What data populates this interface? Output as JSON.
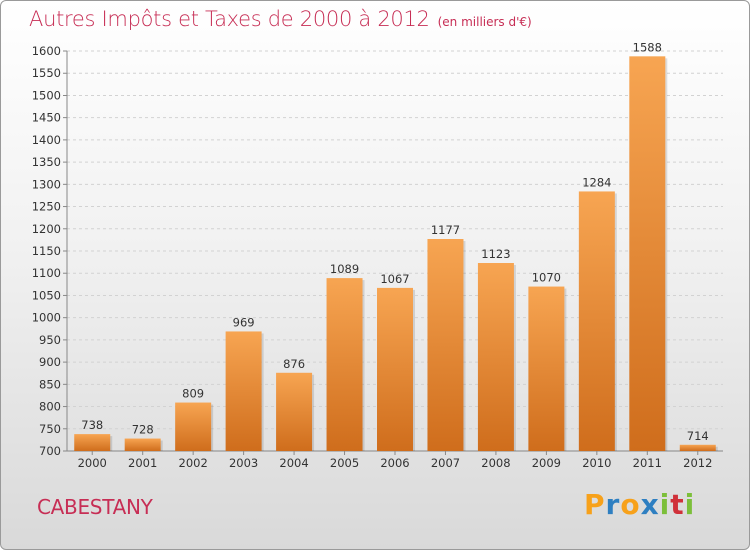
{
  "title": "Autres Impôts et Taxes de 2000 à 2012",
  "unit_note": "(en milliers d'€)",
  "city": "CABESTANY",
  "logo": {
    "letters": [
      "P",
      "r",
      "o",
      "x",
      "i",
      "t",
      "i"
    ],
    "colors": [
      "#f7a11a",
      "#2e7fc1",
      "#f7a11a",
      "#2e7fc1",
      "#7cbf3a",
      "#d0313a",
      "#7cbf3a"
    ]
  },
  "colors": {
    "bar_top": "#f7a552",
    "bar_bottom": "#cf6d1c",
    "title": "#c72e55"
  },
  "chart_data": {
    "type": "bar",
    "categories": [
      "2000",
      "2001",
      "2002",
      "2003",
      "2004",
      "2005",
      "2006",
      "2007",
      "2008",
      "2009",
      "2010",
      "2011",
      "2012"
    ],
    "values": [
      738,
      728,
      809,
      969,
      876,
      1089,
      1067,
      1177,
      1123,
      1070,
      1284,
      1588,
      714
    ],
    "data_labels": [
      "738",
      "728",
      "809",
      "969",
      "876",
      "1089",
      "1067",
      "1177",
      "1123",
      "1070",
      "1284",
      "1588",
      "714"
    ],
    "yticks": [
      "700",
      "750",
      "800",
      "850",
      "900",
      "950",
      "1000",
      "1050",
      "1100",
      "1150",
      "1200",
      "1250",
      "1300",
      "1350",
      "1400",
      "1450",
      "1500",
      "1550",
      "1600"
    ],
    "ylim": [
      700,
      1600
    ],
    "grid": true,
    "legend": "none"
  }
}
